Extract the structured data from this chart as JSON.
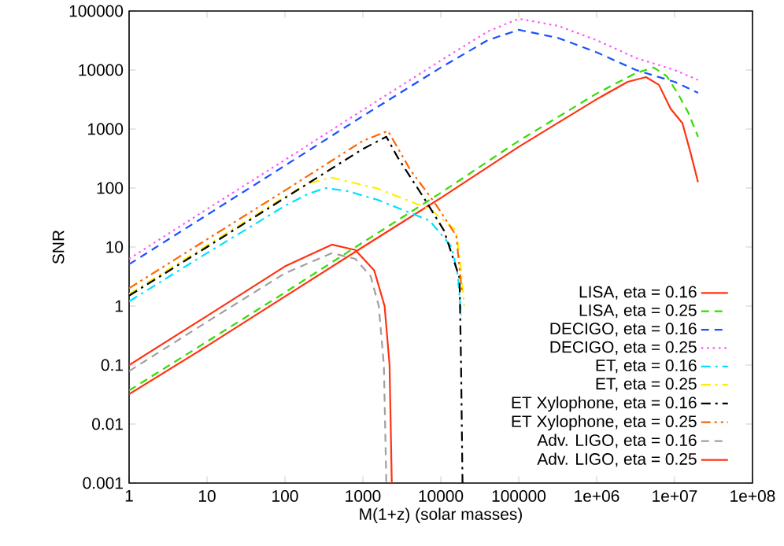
{
  "chart_data": {
    "type": "line",
    "xlabel": "M(1+z) (solar masses)",
    "ylabel": "SNR",
    "log": "xy",
    "legend": "bottom right",
    "marker": "none",
    "xlim": [
      1,
      100000000
    ],
    "ylim": [
      0.001,
      100000
    ],
    "xticks": [
      1,
      10,
      100,
      1000,
      10000,
      100000,
      {
        "value": 1000000,
        "label": "1e+06"
      },
      {
        "value": 10000000,
        "label": "1e+07"
      },
      {
        "value": 100000000,
        "label": "1e+08"
      }
    ],
    "yticks": [
      0.001,
      0.01,
      0.1,
      1,
      10,
      100,
      1000,
      10000,
      100000
    ],
    "series": [
      {
        "name": "LISA, eta = 0.16",
        "color": "#ff3311",
        "line_style": "solid",
        "x": [
          1,
          10,
          100,
          1000,
          10000,
          100000,
          1000000,
          2500000,
          4300000,
          6300000,
          8900000,
          12600000,
          16000000,
          20000000
        ],
        "values": [
          0.032,
          0.21,
          1.45,
          10,
          68,
          500,
          3200,
          6300,
          7600,
          5600,
          2200,
          1260,
          400,
          126
        ]
      },
      {
        "name": "LISA, eta = 0.25",
        "color": "#33dd00",
        "line_style": "dashed",
        "x": [
          1,
          10,
          100,
          1000,
          10000,
          100000,
          1000000,
          3200000,
          5400000,
          7900000,
          11000000,
          15000000,
          20000000
        ],
        "values": [
          0.037,
          0.25,
          1.7,
          12,
          83,
          630,
          4000,
          8900,
          11000,
          7900,
          4000,
          1900,
          740
        ]
      },
      {
        "name": "DECIGO, eta = 0.16",
        "color": "#1a50ff",
        "line_style": "dashed",
        "x": [
          1,
          10,
          100,
          1000,
          10000,
          40000,
          100000,
          320000,
          1000000,
          3200000,
          10000000,
          20000000
        ],
        "values": [
          5.1,
          35,
          240,
          1660,
          11000,
          32000,
          48000,
          35000,
          20000,
          10000,
          6300,
          4100
        ]
      },
      {
        "name": "DECIGO, eta = 0.25",
        "color": "#ff55ff",
        "line_style": "dotted",
        "x": [
          1,
          10,
          100,
          1000,
          10000,
          40000,
          100000,
          320000,
          1000000,
          3200000,
          10000000,
          20000000
        ],
        "values": [
          6.3,
          44,
          300,
          2100,
          14500,
          45000,
          74000,
          56000,
          32000,
          16000,
          10000,
          6800
        ]
      },
      {
        "name": "ET, eta = 0.16",
        "color": "#00e0ff",
        "line_style": "dashdot",
        "x": [
          1,
          10,
          32,
          100,
          200,
          330,
          630,
          1550,
          7200,
          13800,
          16600,
          18200
        ],
        "values": [
          1.2,
          7.9,
          20,
          50,
          80,
          100,
          89,
          63,
          28,
          10,
          3.2,
          0.7
        ]
      },
      {
        "name": "ET, eta = 0.25",
        "color": "#ffee00",
        "line_style": "dashdot",
        "x": [
          1,
          10,
          100,
          200,
          400,
          1550,
          7200,
          15800,
          18200,
          20000
        ],
        "values": [
          1.6,
          10.7,
          71,
          120,
          150,
          98,
          44,
          19,
          4,
          1
        ]
      },
      {
        "name": "ET Xylophone, eta = 0.16",
        "color": "#000000",
        "line_style": "dashdot",
        "x": [
          1,
          10,
          100,
          1000,
          2000,
          2800,
          6300,
          11000,
          17400,
          18200,
          19000
        ],
        "values": [
          1.5,
          10,
          68,
          460,
          740,
          330,
          63,
          19,
          3,
          0.1,
          0.001
        ]
      },
      {
        "name": "ET Xylophone, eta = 0.25",
        "color": "#ff6600",
        "line_style": "dashdotdot",
        "x": [
          1,
          10,
          100,
          1000,
          2100,
          4000,
          8700,
          15800,
          18600
        ],
        "values": [
          2,
          13.5,
          91,
          630,
          930,
          210,
          52,
          15.5,
          1.8
        ]
      },
      {
        "name": "Adv. LIGO, eta = 0.16",
        "color": "#a0a0a0",
        "line_style": "dashed",
        "x": [
          1,
          10,
          100,
          400,
          800,
          1260,
          1600,
          1860,
          2000
        ],
        "values": [
          0.079,
          0.54,
          3.6,
          7.9,
          6.3,
          3.2,
          1,
          0.1,
          0.001
        ]
      },
      {
        "name": "Adv. LIGO, eta = 0.25",
        "color": "#ff3311",
        "line_style": "solid",
        "x": [
          1,
          10,
          100,
          400,
          800,
          1400,
          1900,
          2200,
          2350
        ],
        "values": [
          0.1,
          0.68,
          4.7,
          11,
          8.9,
          4,
          1,
          0.1,
          0.001
        ]
      }
    ]
  }
}
